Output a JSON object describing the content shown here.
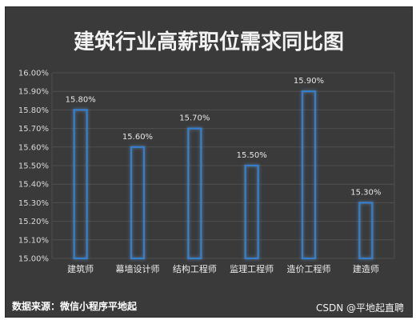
{
  "chart_data": {
    "type": "bar",
    "title": "建筑行业高薪职位需求同比图",
    "categories": [
      "建筑师",
      "幕墙设计师",
      "结构工程师",
      "监理工程师",
      "造价工程师",
      "建造师"
    ],
    "values": [
      15.8,
      15.6,
      15.7,
      15.5,
      15.9,
      15.3
    ],
    "data_labels": [
      "15.80%",
      "15.60%",
      "15.70%",
      "15.50%",
      "15.90%",
      "15.30%"
    ],
    "y_ticks": [
      "15.00%",
      "15.10%",
      "15.20%",
      "15.30%",
      "15.40%",
      "15.50%",
      "15.60%",
      "15.70%",
      "15.80%",
      "15.90%",
      "16.00%"
    ],
    "ylim": [
      15.0,
      16.0
    ],
    "xlabel": "",
    "ylabel": "",
    "grid": true,
    "legend": "none"
  },
  "source_note": "数据来源：微信小程序平地起",
  "watermark": "CSDN @平地起直聘",
  "colors": {
    "background": "#3a3a3a",
    "bar_outline": "#2e7fd6",
    "bar_glow": "#69b6ff",
    "grid": "#4f4f4f"
  }
}
